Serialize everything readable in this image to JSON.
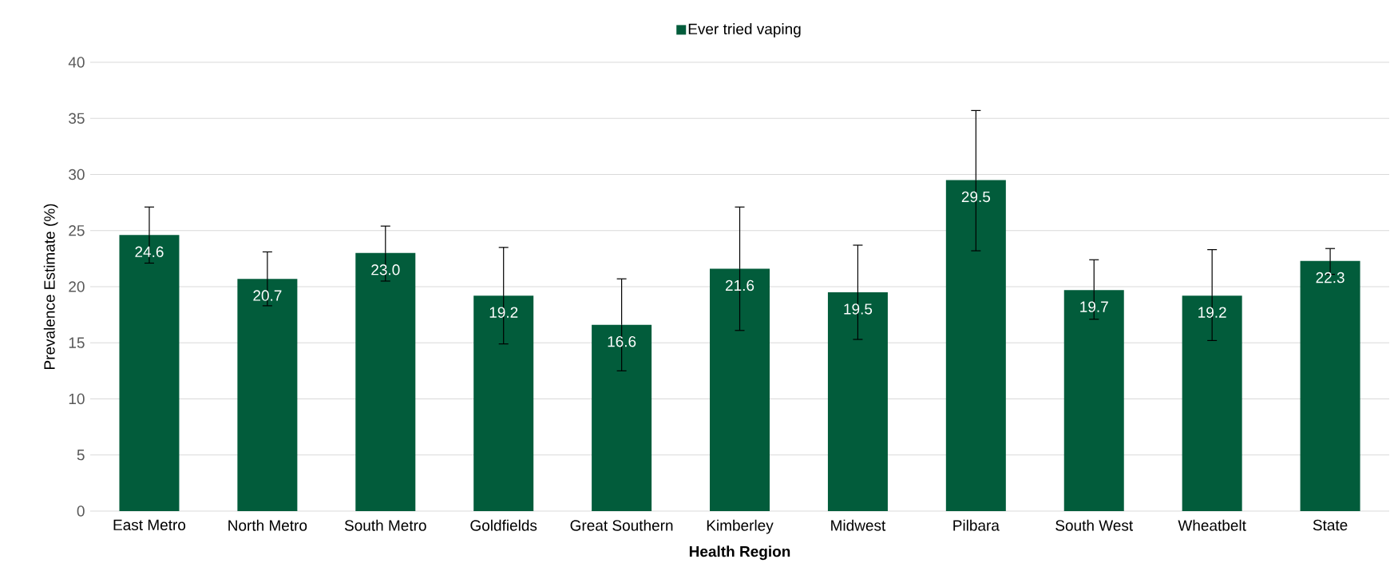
{
  "chart_data": {
    "type": "bar",
    "xlabel": "Health Region",
    "ylabel": "Prevalence Estimate (%)",
    "categories": [
      "East Metro",
      "North Metro",
      "South Metro",
      "Goldfields",
      "Great Southern",
      "Kimberley",
      "Midwest",
      "Pilbara",
      "South West",
      "Wheatbelt",
      "State"
    ],
    "series": [
      {
        "name": "Ever tried vaping",
        "color": "#025c3b",
        "values": [
          24.6,
          20.7,
          23.0,
          19.2,
          16.6,
          21.6,
          19.5,
          29.5,
          19.7,
          19.2,
          22.3
        ],
        "errors": [
          [
            22.1,
            27.1
          ],
          [
            18.3,
            23.1
          ],
          [
            20.5,
            25.4
          ],
          [
            14.9,
            23.5
          ],
          [
            12.5,
            20.7
          ],
          [
            16.1,
            27.1
          ],
          [
            15.3,
            23.7
          ],
          [
            23.2,
            35.7
          ],
          [
            17.1,
            22.4
          ],
          [
            15.2,
            23.3
          ],
          [
            21.1,
            23.4
          ]
        ],
        "value_labels": [
          "24.6",
          "20.7",
          "23.0",
          "19.2",
          "16.6",
          "21.6",
          "19.5",
          "29.5",
          "19.7",
          "19.2",
          "22.3"
        ]
      }
    ],
    "ylim": [
      0,
      40
    ],
    "yticks": [
      0,
      5,
      10,
      15,
      20,
      25,
      30,
      35,
      40
    ],
    "grid": "y",
    "legend": "top"
  }
}
